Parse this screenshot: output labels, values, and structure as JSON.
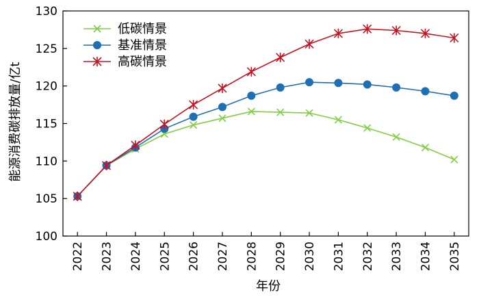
{
  "chart_data": {
    "type": "line",
    "title": "",
    "xlabel": "年份",
    "ylabel": "能源消费碳排放量/亿t",
    "x": [
      "2022",
      "2023",
      "2024",
      "2025",
      "2026",
      "2027",
      "2028",
      "2029",
      "2030",
      "2031",
      "2032",
      "2033",
      "2034",
      "2035"
    ],
    "ylim": [
      100,
      130
    ],
    "yticks": [
      100,
      105,
      110,
      115,
      120,
      125,
      130
    ],
    "grid": false,
    "legend_position": "top-left",
    "series": [
      {
        "name": "低碳情景",
        "color": "#7fcf3f",
        "marker": "x",
        "values": [
          105.3,
          109.4,
          111.6,
          113.6,
          114.8,
          115.7,
          116.6,
          116.5,
          116.4,
          115.5,
          114.4,
          113.2,
          111.8,
          110.2
        ]
      },
      {
        "name": "基准情景",
        "color": "#1f6fb4",
        "marker": "circle",
        "values": [
          105.3,
          109.4,
          111.8,
          114.3,
          115.9,
          117.2,
          118.7,
          119.8,
          120.5,
          120.4,
          120.2,
          119.8,
          119.3,
          118.7
        ]
      },
      {
        "name": "高碳情景",
        "color": "#c8101e",
        "marker": "star",
        "values": [
          105.3,
          109.4,
          112.1,
          114.9,
          117.5,
          119.7,
          121.9,
          123.8,
          125.6,
          127.0,
          127.6,
          127.4,
          127.0,
          126.4
        ]
      }
    ]
  }
}
